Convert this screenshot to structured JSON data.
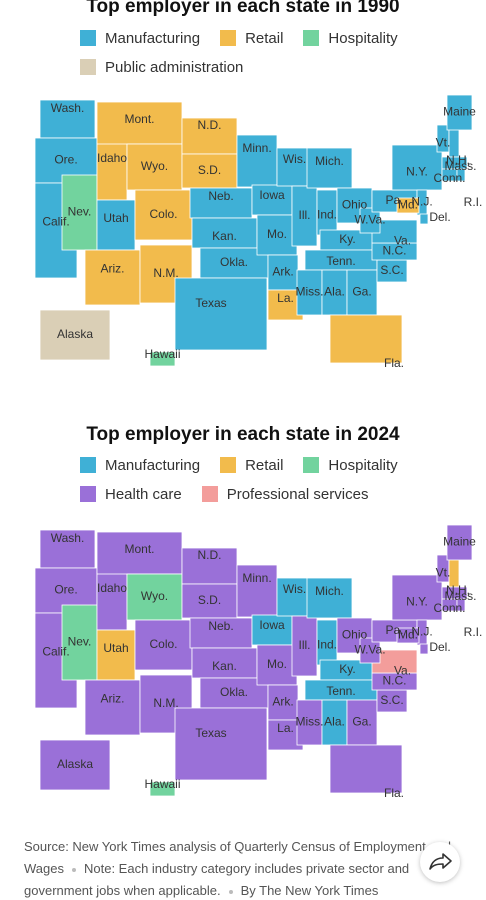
{
  "maps": [
    {
      "title": "Top employer in each state in 1990",
      "legend": [
        {
          "label": "Manufacturing",
          "color": "#3fb0d6"
        },
        {
          "label": "Retail",
          "color": "#f2bb4c"
        },
        {
          "label": "Hospitality",
          "color": "#72d39e"
        },
        {
          "label": "Public administration",
          "color": "#dacfb6"
        }
      ],
      "states": [
        {
          "label": "Wash.",
          "category": "Manufacturing"
        },
        {
          "label": "Ore.",
          "category": "Manufacturing"
        },
        {
          "label": "Calif.",
          "category": "Manufacturing"
        },
        {
          "label": "Nev.",
          "category": "Hospitality"
        },
        {
          "label": "Idaho",
          "category": "Retail"
        },
        {
          "label": "Mont.",
          "category": "Retail"
        },
        {
          "label": "Wyo.",
          "category": "Retail"
        },
        {
          "label": "Utah",
          "category": "Manufacturing"
        },
        {
          "label": "Colo.",
          "category": "Retail"
        },
        {
          "label": "Ariz.",
          "category": "Retail"
        },
        {
          "label": "N.M.",
          "category": "Retail"
        },
        {
          "label": "N.D.",
          "category": "Retail"
        },
        {
          "label": "S.D.",
          "category": "Retail"
        },
        {
          "label": "Neb.",
          "category": "Manufacturing"
        },
        {
          "label": "Kan.",
          "category": "Manufacturing"
        },
        {
          "label": "Okla.",
          "category": "Manufacturing"
        },
        {
          "label": "Texas",
          "category": "Manufacturing"
        },
        {
          "label": "Minn.",
          "category": "Manufacturing"
        },
        {
          "label": "Iowa",
          "category": "Manufacturing"
        },
        {
          "label": "Mo.",
          "category": "Manufacturing"
        },
        {
          "label": "Ark.",
          "category": "Manufacturing"
        },
        {
          "label": "La.",
          "category": "Retail"
        },
        {
          "label": "Wis.",
          "category": "Manufacturing"
        },
        {
          "label": "Ill.",
          "category": "Manufacturing"
        },
        {
          "label": "Mich.",
          "category": "Manufacturing"
        },
        {
          "label": "Ind.",
          "category": "Manufacturing"
        },
        {
          "label": "Ohio",
          "category": "Manufacturing"
        },
        {
          "label": "Ky.",
          "category": "Manufacturing"
        },
        {
          "label": "Tenn.",
          "category": "Manufacturing"
        },
        {
          "label": "Miss.",
          "category": "Manufacturing"
        },
        {
          "label": "Ala.",
          "category": "Manufacturing"
        },
        {
          "label": "Ga.",
          "category": "Manufacturing"
        },
        {
          "label": "Fla.",
          "category": "Retail"
        },
        {
          "label": "S.C.",
          "category": "Manufacturing"
        },
        {
          "label": "N.C.",
          "category": "Manufacturing"
        },
        {
          "label": "Va.",
          "category": "Manufacturing"
        },
        {
          "label": "W.Va.",
          "category": "Manufacturing"
        },
        {
          "label": "Pa.",
          "category": "Manufacturing"
        },
        {
          "label": "N.Y.",
          "category": "Manufacturing"
        },
        {
          "label": "Vt.",
          "category": "Manufacturing"
        },
        {
          "label": "N.H.",
          "category": "Manufacturing"
        },
        {
          "label": "Maine",
          "category": "Manufacturing"
        },
        {
          "label": "Mass.",
          "category": "Manufacturing"
        },
        {
          "label": "Conn.",
          "category": "Manufacturing"
        },
        {
          "label": "R.I.",
          "category": "Manufacturing"
        },
        {
          "label": "N.J.",
          "category": "Manufacturing"
        },
        {
          "label": "Del.",
          "category": "Manufacturing"
        },
        {
          "label": "Md.",
          "category": "Retail"
        },
        {
          "label": "Alaska",
          "category": "Public administration"
        },
        {
          "label": "Hawaii",
          "category": "Hospitality"
        }
      ]
    },
    {
      "title": "Top employer in each state in 2024",
      "legend": [
        {
          "label": "Manufacturing",
          "color": "#3fb0d6"
        },
        {
          "label": "Retail",
          "color": "#f2bb4c"
        },
        {
          "label": "Hospitality",
          "color": "#72d39e"
        },
        {
          "label": "Health care",
          "color": "#9a70d8"
        },
        {
          "label": "Professional services",
          "color": "#f39d9b"
        }
      ],
      "states": [
        {
          "label": "Wash.",
          "category": "Health care"
        },
        {
          "label": "Ore.",
          "category": "Health care"
        },
        {
          "label": "Calif.",
          "category": "Health care"
        },
        {
          "label": "Nev.",
          "category": "Hospitality"
        },
        {
          "label": "Idaho",
          "category": "Health care"
        },
        {
          "label": "Mont.",
          "category": "Health care"
        },
        {
          "label": "Wyo.",
          "category": "Hospitality"
        },
        {
          "label": "Utah",
          "category": "Retail"
        },
        {
          "label": "Colo.",
          "category": "Health care"
        },
        {
          "label": "Ariz.",
          "category": "Health care"
        },
        {
          "label": "N.M.",
          "category": "Health care"
        },
        {
          "label": "N.D.",
          "category": "Health care"
        },
        {
          "label": "S.D.",
          "category": "Health care"
        },
        {
          "label": "Neb.",
          "category": "Health care"
        },
        {
          "label": "Kan.",
          "category": "Health care"
        },
        {
          "label": "Okla.",
          "category": "Health care"
        },
        {
          "label": "Texas",
          "category": "Health care"
        },
        {
          "label": "Minn.",
          "category": "Health care"
        },
        {
          "label": "Iowa",
          "category": "Manufacturing"
        },
        {
          "label": "Mo.",
          "category": "Health care"
        },
        {
          "label": "Ark.",
          "category": "Health care"
        },
        {
          "label": "La.",
          "category": "Health care"
        },
        {
          "label": "Wis.",
          "category": "Manufacturing"
        },
        {
          "label": "Ill.",
          "category": "Health care"
        },
        {
          "label": "Mich.",
          "category": "Manufacturing"
        },
        {
          "label": "Ind.",
          "category": "Manufacturing"
        },
        {
          "label": "Ohio",
          "category": "Health care"
        },
        {
          "label": "Ky.",
          "category": "Manufacturing"
        },
        {
          "label": "Tenn.",
          "category": "Manufacturing"
        },
        {
          "label": "Miss.",
          "category": "Health care"
        },
        {
          "label": "Ala.",
          "category": "Manufacturing"
        },
        {
          "label": "Ga.",
          "category": "Health care"
        },
        {
          "label": "Fla.",
          "category": "Health care"
        },
        {
          "label": "S.C.",
          "category": "Health care"
        },
        {
          "label": "N.C.",
          "category": "Health care"
        },
        {
          "label": "Va.",
          "category": "Professional services"
        },
        {
          "label": "W.Va.",
          "category": "Health care"
        },
        {
          "label": "Pa.",
          "category": "Health care"
        },
        {
          "label": "N.Y.",
          "category": "Health care"
        },
        {
          "label": "Vt.",
          "category": "Health care"
        },
        {
          "label": "N.H.",
          "category": "Retail"
        },
        {
          "label": "Maine",
          "category": "Health care"
        },
        {
          "label": "Mass.",
          "category": "Health care"
        },
        {
          "label": "Conn.",
          "category": "Health care"
        },
        {
          "label": "R.I.",
          "category": "Health care"
        },
        {
          "label": "N.J.",
          "category": "Health care"
        },
        {
          "label": "Del.",
          "category": "Health care"
        },
        {
          "label": "Md.",
          "category": "Health care"
        },
        {
          "label": "Alaska",
          "category": "Health care"
        },
        {
          "label": "Hawaii",
          "category": "Hospitality"
        }
      ]
    }
  ],
  "footer": {
    "source": "Source: New York Times analysis of Quarterly Census of Employment and Wages",
    "note": "Note: Each industry category includes private sector and government jobs when applicable.",
    "credit": "By The New York Times"
  }
}
